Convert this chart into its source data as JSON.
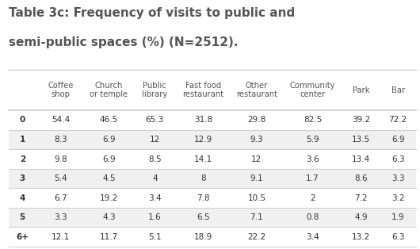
{
  "title_line1": "Table 3c: Frequency of visits to public and",
  "title_line2": "semi-public spaces (%) (N=2512).",
  "col_headers": [
    "Coffee\nshop",
    "Church\nor temple",
    "Public\nlibrary",
    "Fast food\nrestaurant",
    "Other\nrestaurant",
    "Community\ncenter",
    "Park",
    "Bar"
  ],
  "row_headers": [
    "0",
    "1",
    "2",
    "3",
    "4",
    "5",
    "6+"
  ],
  "data": [
    [
      54.4,
      46.5,
      65.3,
      31.8,
      29.8,
      82.5,
      39.2,
      72.2
    ],
    [
      8.3,
      6.9,
      12.0,
      12.9,
      9.3,
      5.9,
      13.5,
      6.9
    ],
    [
      9.8,
      6.9,
      8.5,
      14.1,
      12.0,
      3.6,
      13.4,
      6.3
    ],
    [
      5.4,
      4.5,
      4.0,
      8.0,
      9.1,
      1.7,
      8.6,
      3.3
    ],
    [
      6.7,
      19.2,
      3.4,
      7.8,
      10.5,
      2.0,
      7.2,
      3.2
    ],
    [
      3.3,
      4.3,
      1.6,
      6.5,
      7.1,
      0.8,
      4.9,
      1.9
    ],
    [
      12.1,
      11.7,
      5.1,
      18.9,
      22.2,
      3.4,
      13.2,
      6.3
    ]
  ],
  "bg_color": "#ffffff",
  "header_text_color": "#555555",
  "title_color": "#555555",
  "cell_text_color": "#333333",
  "row_header_color": "#333333",
  "line_color": "#cccccc",
  "alt_row_color": "#f0f0f0",
  "normal_row_color": "#ffffff"
}
